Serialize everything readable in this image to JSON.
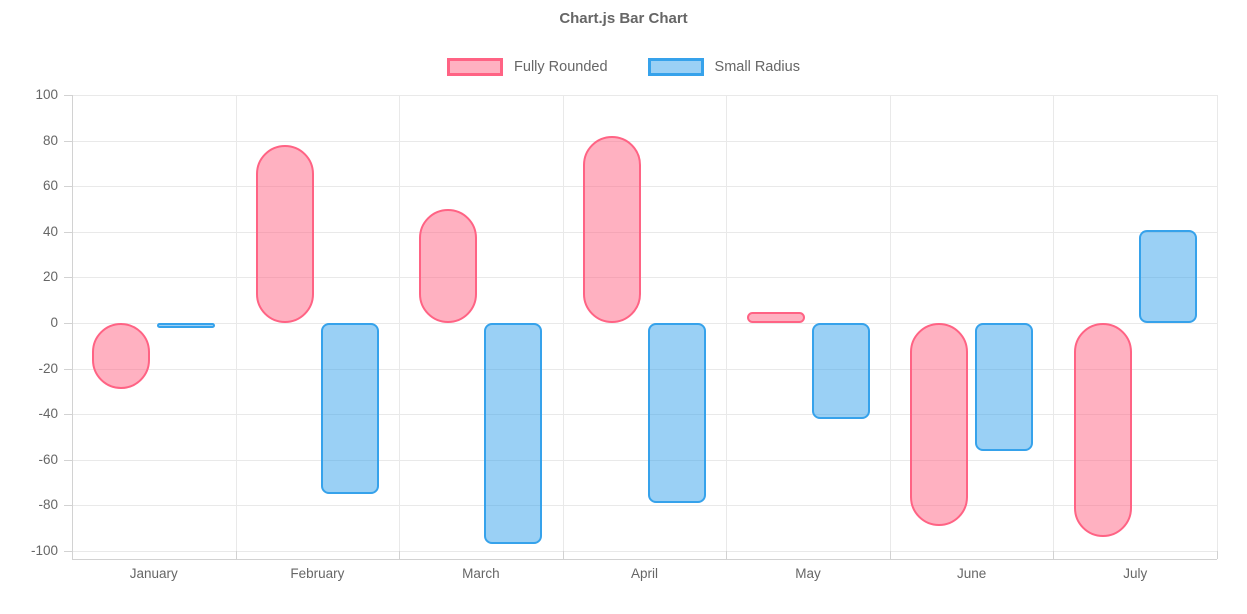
{
  "title": "Chart.js Bar Chart",
  "chart_data": {
    "type": "bar",
    "title": "Chart.js Bar Chart",
    "categories": [
      "January",
      "February",
      "March",
      "April",
      "May",
      "June",
      "July"
    ],
    "series": [
      {
        "name": "Fully Rounded",
        "style": "fully-rounded",
        "fill": "rgba(255, 99, 132, 0.5)",
        "border_color": "#FF6384",
        "values": [
          -29,
          78,
          50,
          82,
          5,
          -89,
          -94
        ]
      },
      {
        "name": "Small Radius",
        "style": "small-radius",
        "fill": "rgba(54, 162, 235, 0.5)",
        "border_color": "#36A2EB",
        "values": [
          -2,
          -75,
          -97,
          -79,
          -42,
          -56,
          41
        ]
      }
    ],
    "xlabel": "",
    "ylabel": "",
    "ylim": [
      -100,
      100
    ],
    "ytick_step": 20,
    "yticks": [
      100,
      80,
      60,
      40,
      20,
      0,
      -20,
      -40,
      -60,
      -80,
      -100
    ],
    "grid": true,
    "legend_position": "top"
  },
  "axis": {
    "grid_color": "#e9e9e9",
    "border_color": "#d2d2d2",
    "tick_label_color": "#666666"
  }
}
